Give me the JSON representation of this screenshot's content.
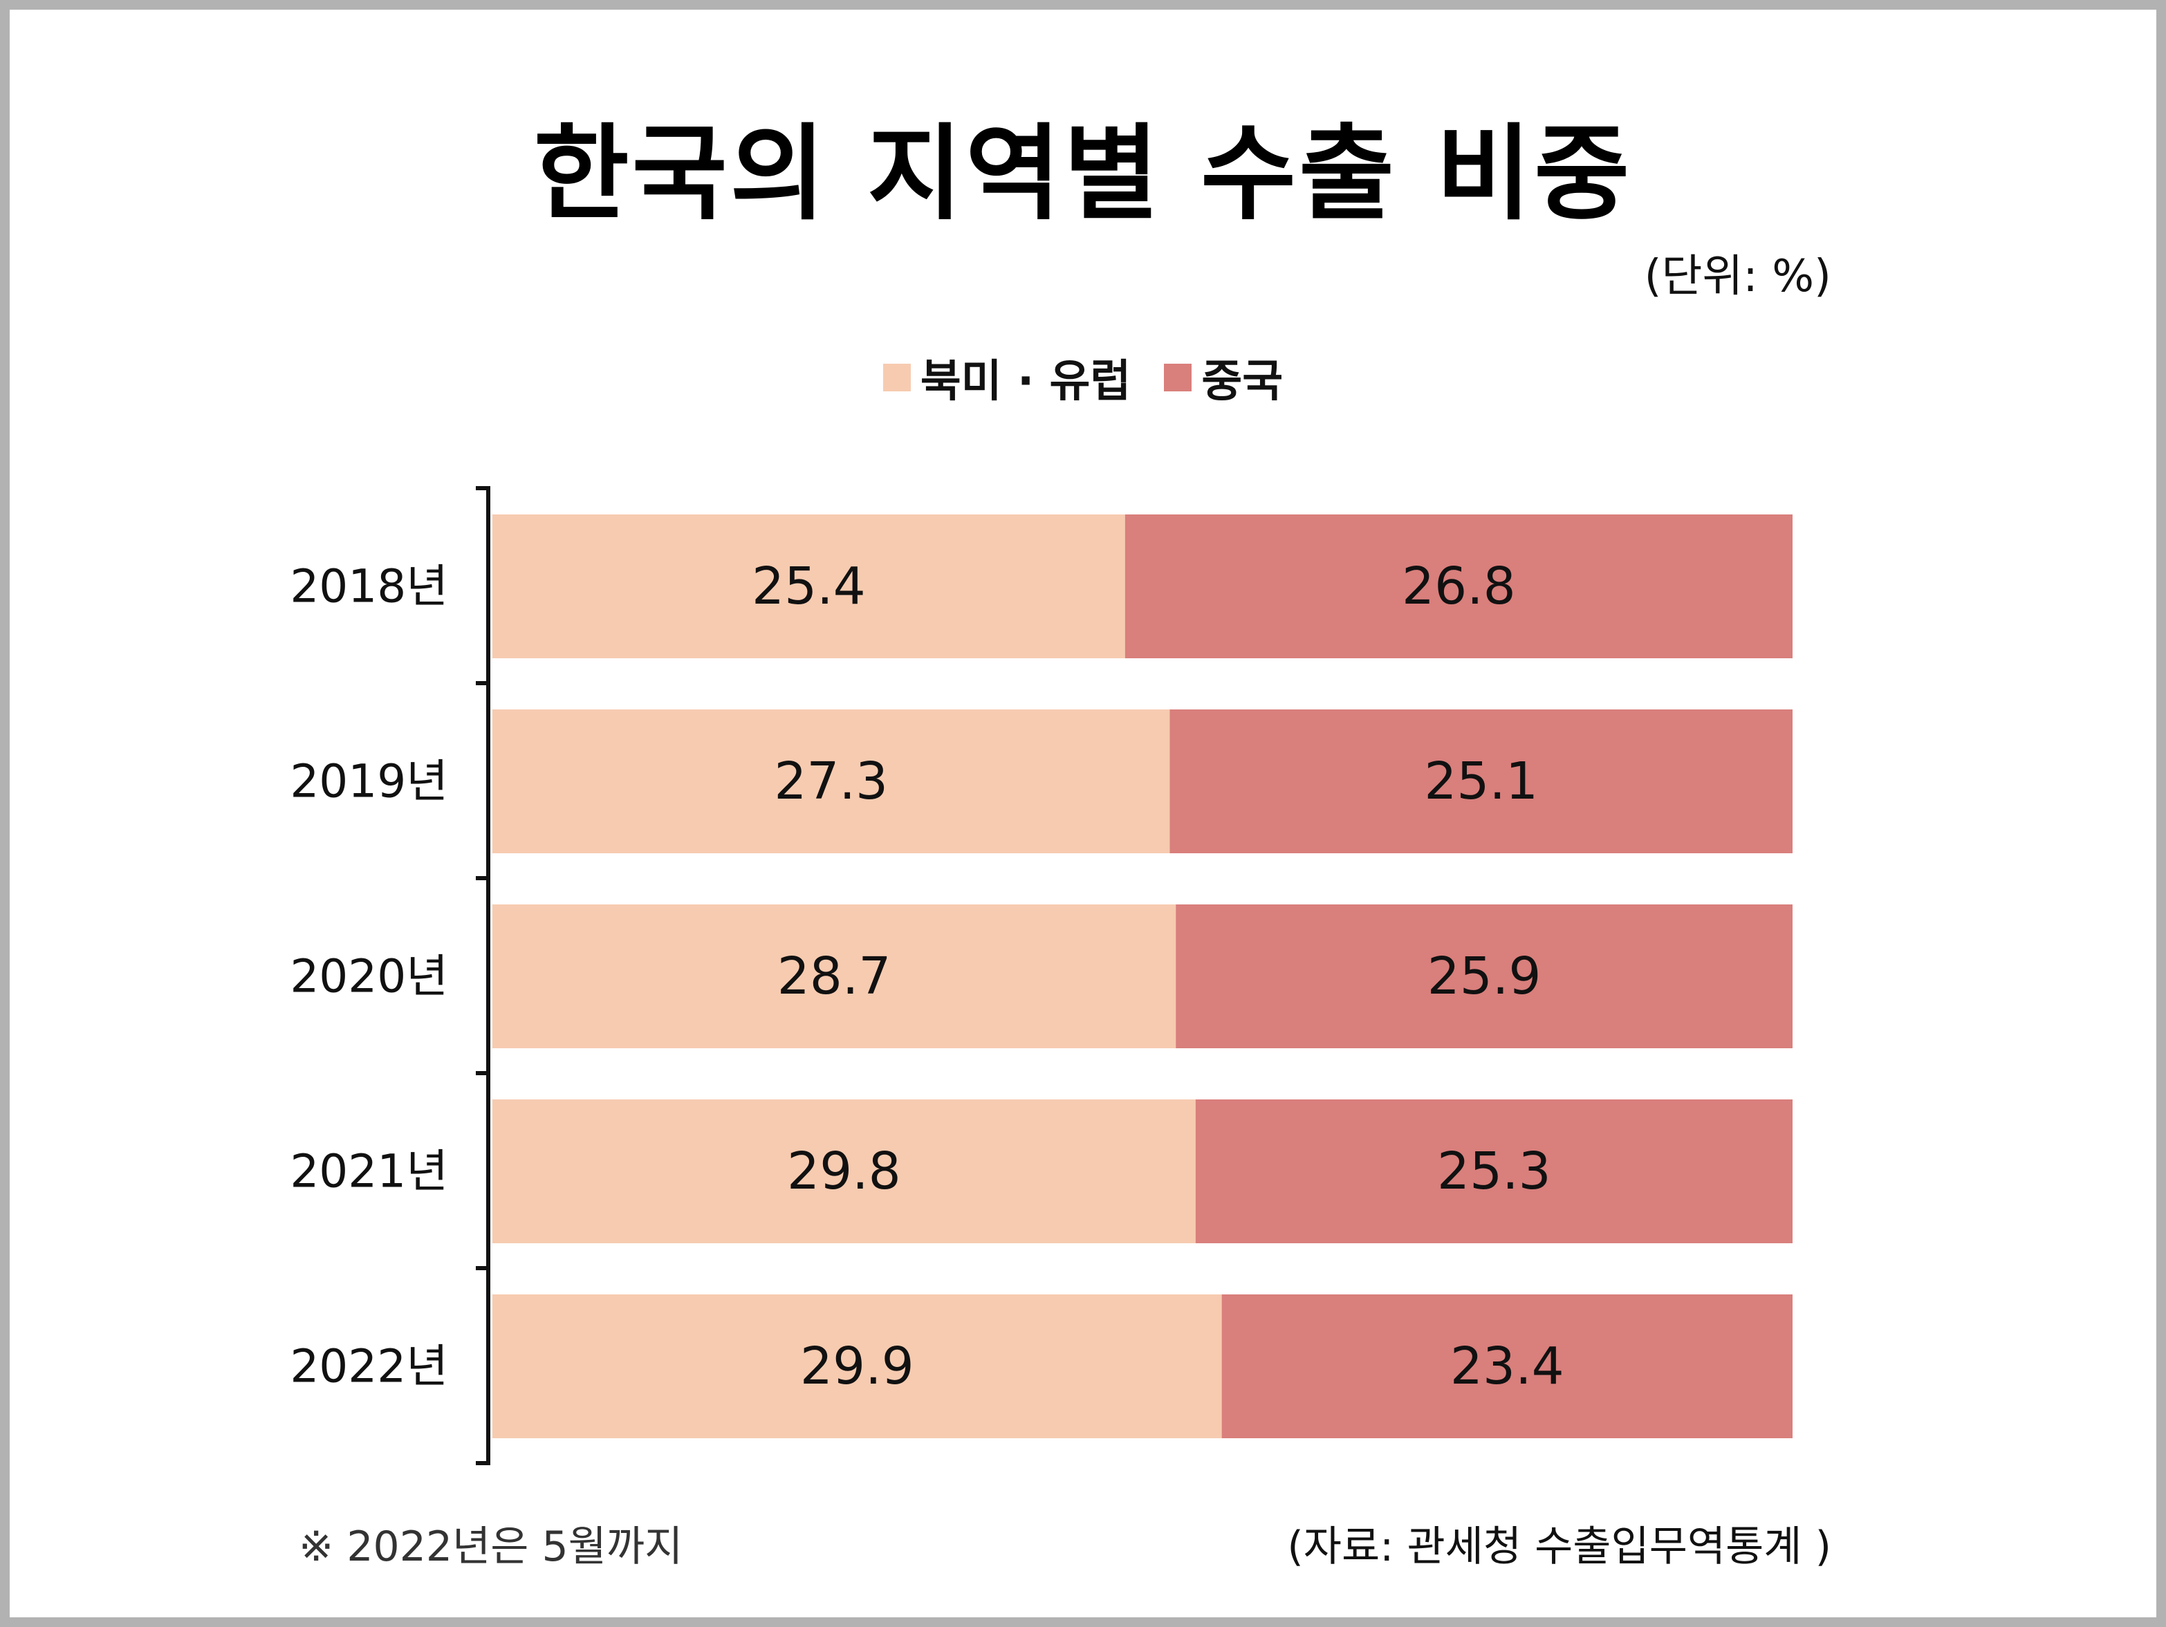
{
  "colors": {
    "north_america_europe": "#f7cbb0",
    "china": "#d97f7c",
    "axis": "#111111"
  },
  "title": "한국의 지역별 수출 비중",
  "unit": "(단위: %)",
  "legend": [
    {
      "label": "북미 · 유럽",
      "color": "#f7cbb0"
    },
    {
      "label": "중국",
      "color": "#d97f7c"
    }
  ],
  "footnote": "※ 2022년은 5월까지",
  "source": "(자료: 관세청 수출입무역통계 )",
  "chart_data": {
    "type": "bar",
    "orientation": "horizontal",
    "stacked": true,
    "categories": [
      "2018년",
      "2019년",
      "2020년",
      "2021년",
      "2022년"
    ],
    "series": [
      {
        "name": "북미 · 유럽",
        "values": [
          25.4,
          27.3,
          28.7,
          29.8,
          29.9
        ]
      },
      {
        "name": "중국",
        "values": [
          26.8,
          25.1,
          25.9,
          25.3,
          23.4
        ]
      }
    ],
    "title": "한국의 지역별 수출 비중",
    "unit": "%",
    "grid": false,
    "legend_position": "top-center"
  }
}
